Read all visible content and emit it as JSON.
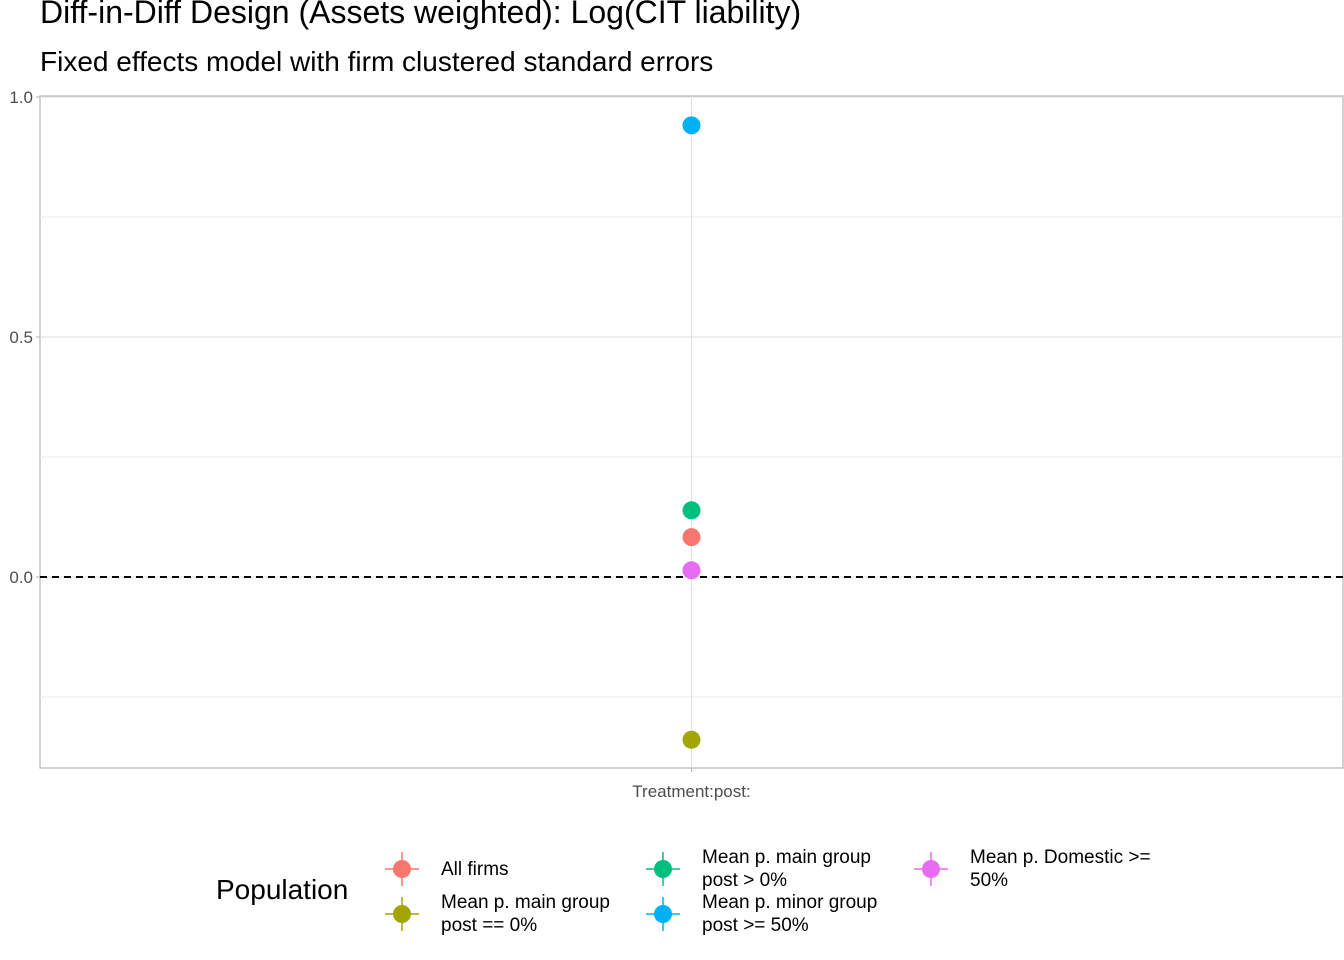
{
  "chart_data": {
    "type": "scatter",
    "title": "Diff-in-Diff Design (Assets weighted): Log(CIT liability)",
    "subtitle": "Fixed effects model with firm clustered standard errors",
    "xlabel": "",
    "ylabel": "",
    "categories": [
      "Treatment:post:"
    ],
    "ylim": [
      -0.4,
      1.0
    ],
    "y_ticks": [
      0.0,
      0.5,
      1.0
    ],
    "y_tick_labels": [
      "0.0",
      "0.5",
      "1.0"
    ],
    "reference_line": {
      "y": 0,
      "style": "dashed"
    },
    "grid": true,
    "legend": {
      "title": "Population",
      "position": "bottom"
    },
    "series": [
      {
        "name": "All firms",
        "color": "#F8766D",
        "x": "Treatment:post:",
        "y": 0.083,
        "ci_low": 0.083,
        "ci_high": 0.083
      },
      {
        "name": "Mean p. main group\npost == 0%",
        "color": "#A3A500",
        "x": "Treatment:post:",
        "y": -0.339,
        "ci_low": -0.339,
        "ci_high": -0.339
      },
      {
        "name": "Mean p. main group\npost > 0%",
        "color": "#00BF7D",
        "x": "Treatment:post:",
        "y": 0.139,
        "ci_low": 0.139,
        "ci_high": 0.139
      },
      {
        "name": "Mean p. minor group\npost >= 50%",
        "color": "#00B0F6",
        "x": "Treatment:post:",
        "y": 0.941,
        "ci_low": 0.941,
        "ci_high": 0.941
      },
      {
        "name": "Mean p. Domestic >=\n50%",
        "color": "#E76BF3",
        "x": "Treatment:post:",
        "y": 0.014,
        "ci_low": 0.014,
        "ci_high": 0.014
      }
    ]
  }
}
